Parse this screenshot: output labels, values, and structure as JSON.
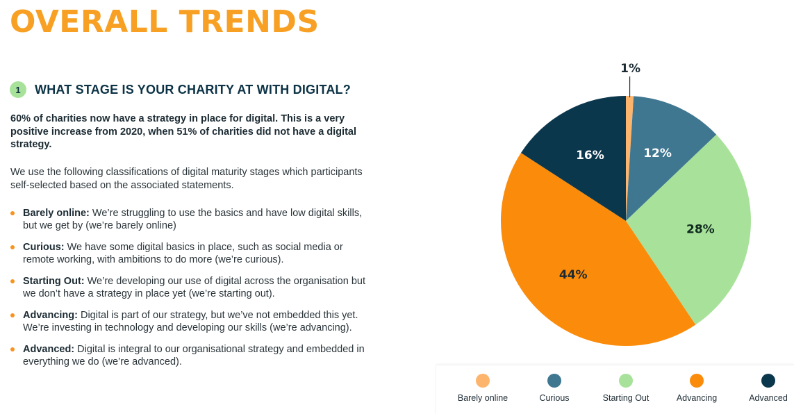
{
  "page": {
    "title": "OVERALL TRENDS"
  },
  "section": {
    "number": "1",
    "title": "WHAT STAGE IS YOUR CHARITY AT WITH DIGITAL?",
    "intro": "60% of charities now have a strategy in place for digital. This is a very positive increase from 2020, when 51% of charities did not have a digital strategy.",
    "description": "We use the following classifications of digital maturity stages which participants self-selected based on the associated statements.",
    "stages": [
      {
        "name": "Barely online:",
        "text": " We’re struggling to use the basics and have low digital skills, but we get by (we’re barely online)"
      },
      {
        "name": "Curious:",
        "text": " We have some digital basics in place, such as social media or remote working, with ambitions to do more (we’re curious)."
      },
      {
        "name": "Starting Out:",
        "text": " We’re developing our use of digital across the organisation but we don’t have a strategy in place yet (we’re starting out)."
      },
      {
        "name": "Advancing:",
        "text": " Digital is part of our strategy, but we’ve not embedded this yet. We’re investing in technology and developing our skills (we’re advancing)."
      },
      {
        "name": "Advanced:",
        "text": " Digital is integral to our organisational strategy and embedded in everything we do (we’re advanced)."
      }
    ]
  },
  "colors": {
    "title_orange": "#f7a023",
    "bullet_orange": "#f7941d",
    "badge_green": "#a8e29a",
    "heading_navy": "#0b3245"
  },
  "chart_data": {
    "type": "pie",
    "title": "",
    "start": "top",
    "direction": "clockwise",
    "legend_position": "bottom",
    "categories": [
      "Barely online",
      "Curious",
      "Starting Out",
      "Advancing",
      "Advanced"
    ],
    "values": [
      1,
      12,
      28,
      44,
      16
    ],
    "labels": [
      "1%",
      "12%",
      "28%",
      "44%",
      "16%"
    ],
    "colors": [
      "#fdb46c",
      "#3f7791",
      "#a8e29a",
      "#fb8b0a",
      "#0b374d"
    ],
    "label_colors": [
      "#1c2b33",
      "#ffffff",
      "#102a1f",
      "#1c2b33",
      "#ffffff"
    ],
    "unit": "%"
  }
}
